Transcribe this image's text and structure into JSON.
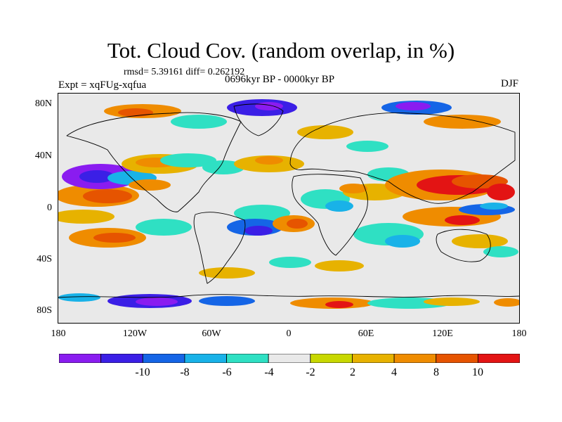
{
  "title": "Tot. Cloud Cov. (random overlap, in %)",
  "stats": "rmsd= 5.39161 diff= 0.262192",
  "expt": "Expt = xqFUg-xqfua",
  "period": "0696kyr BP - 0000kyr BP",
  "season": "DJF",
  "lat_ticks": [
    "80N",
    "40N",
    "0",
    "40S",
    "80S"
  ],
  "lon_ticks": [
    "180",
    "120W",
    "60W",
    "0",
    "60E",
    "120E",
    "180"
  ],
  "colorbar": {
    "colors": [
      "#8a1cf0",
      "#3b1fe6",
      "#1565e6",
      "#19b2e8",
      "#2fe0c3",
      "#e9e9e9",
      "#c8d800",
      "#e7b200",
      "#ef8c00",
      "#e65400",
      "#e31414"
    ],
    "labels": [
      "-10",
      "-8",
      "-6",
      "-4",
      "-2",
      "2",
      "4",
      "8",
      "10"
    ]
  },
  "palette": {
    "strong_neg": "#8a1cf0",
    "neg2": "#3b1fe6",
    "neg3": "#1565e6",
    "neg4": "#19b2e8",
    "weak_neg": "#2fe0c3",
    "neutral": "#e9e9e9",
    "weak_pos": "#c8d800",
    "pos2": "#e7b200",
    "pos3": "#ef8c00",
    "pos4": "#e65400",
    "strong_pos": "#e31414"
  }
}
